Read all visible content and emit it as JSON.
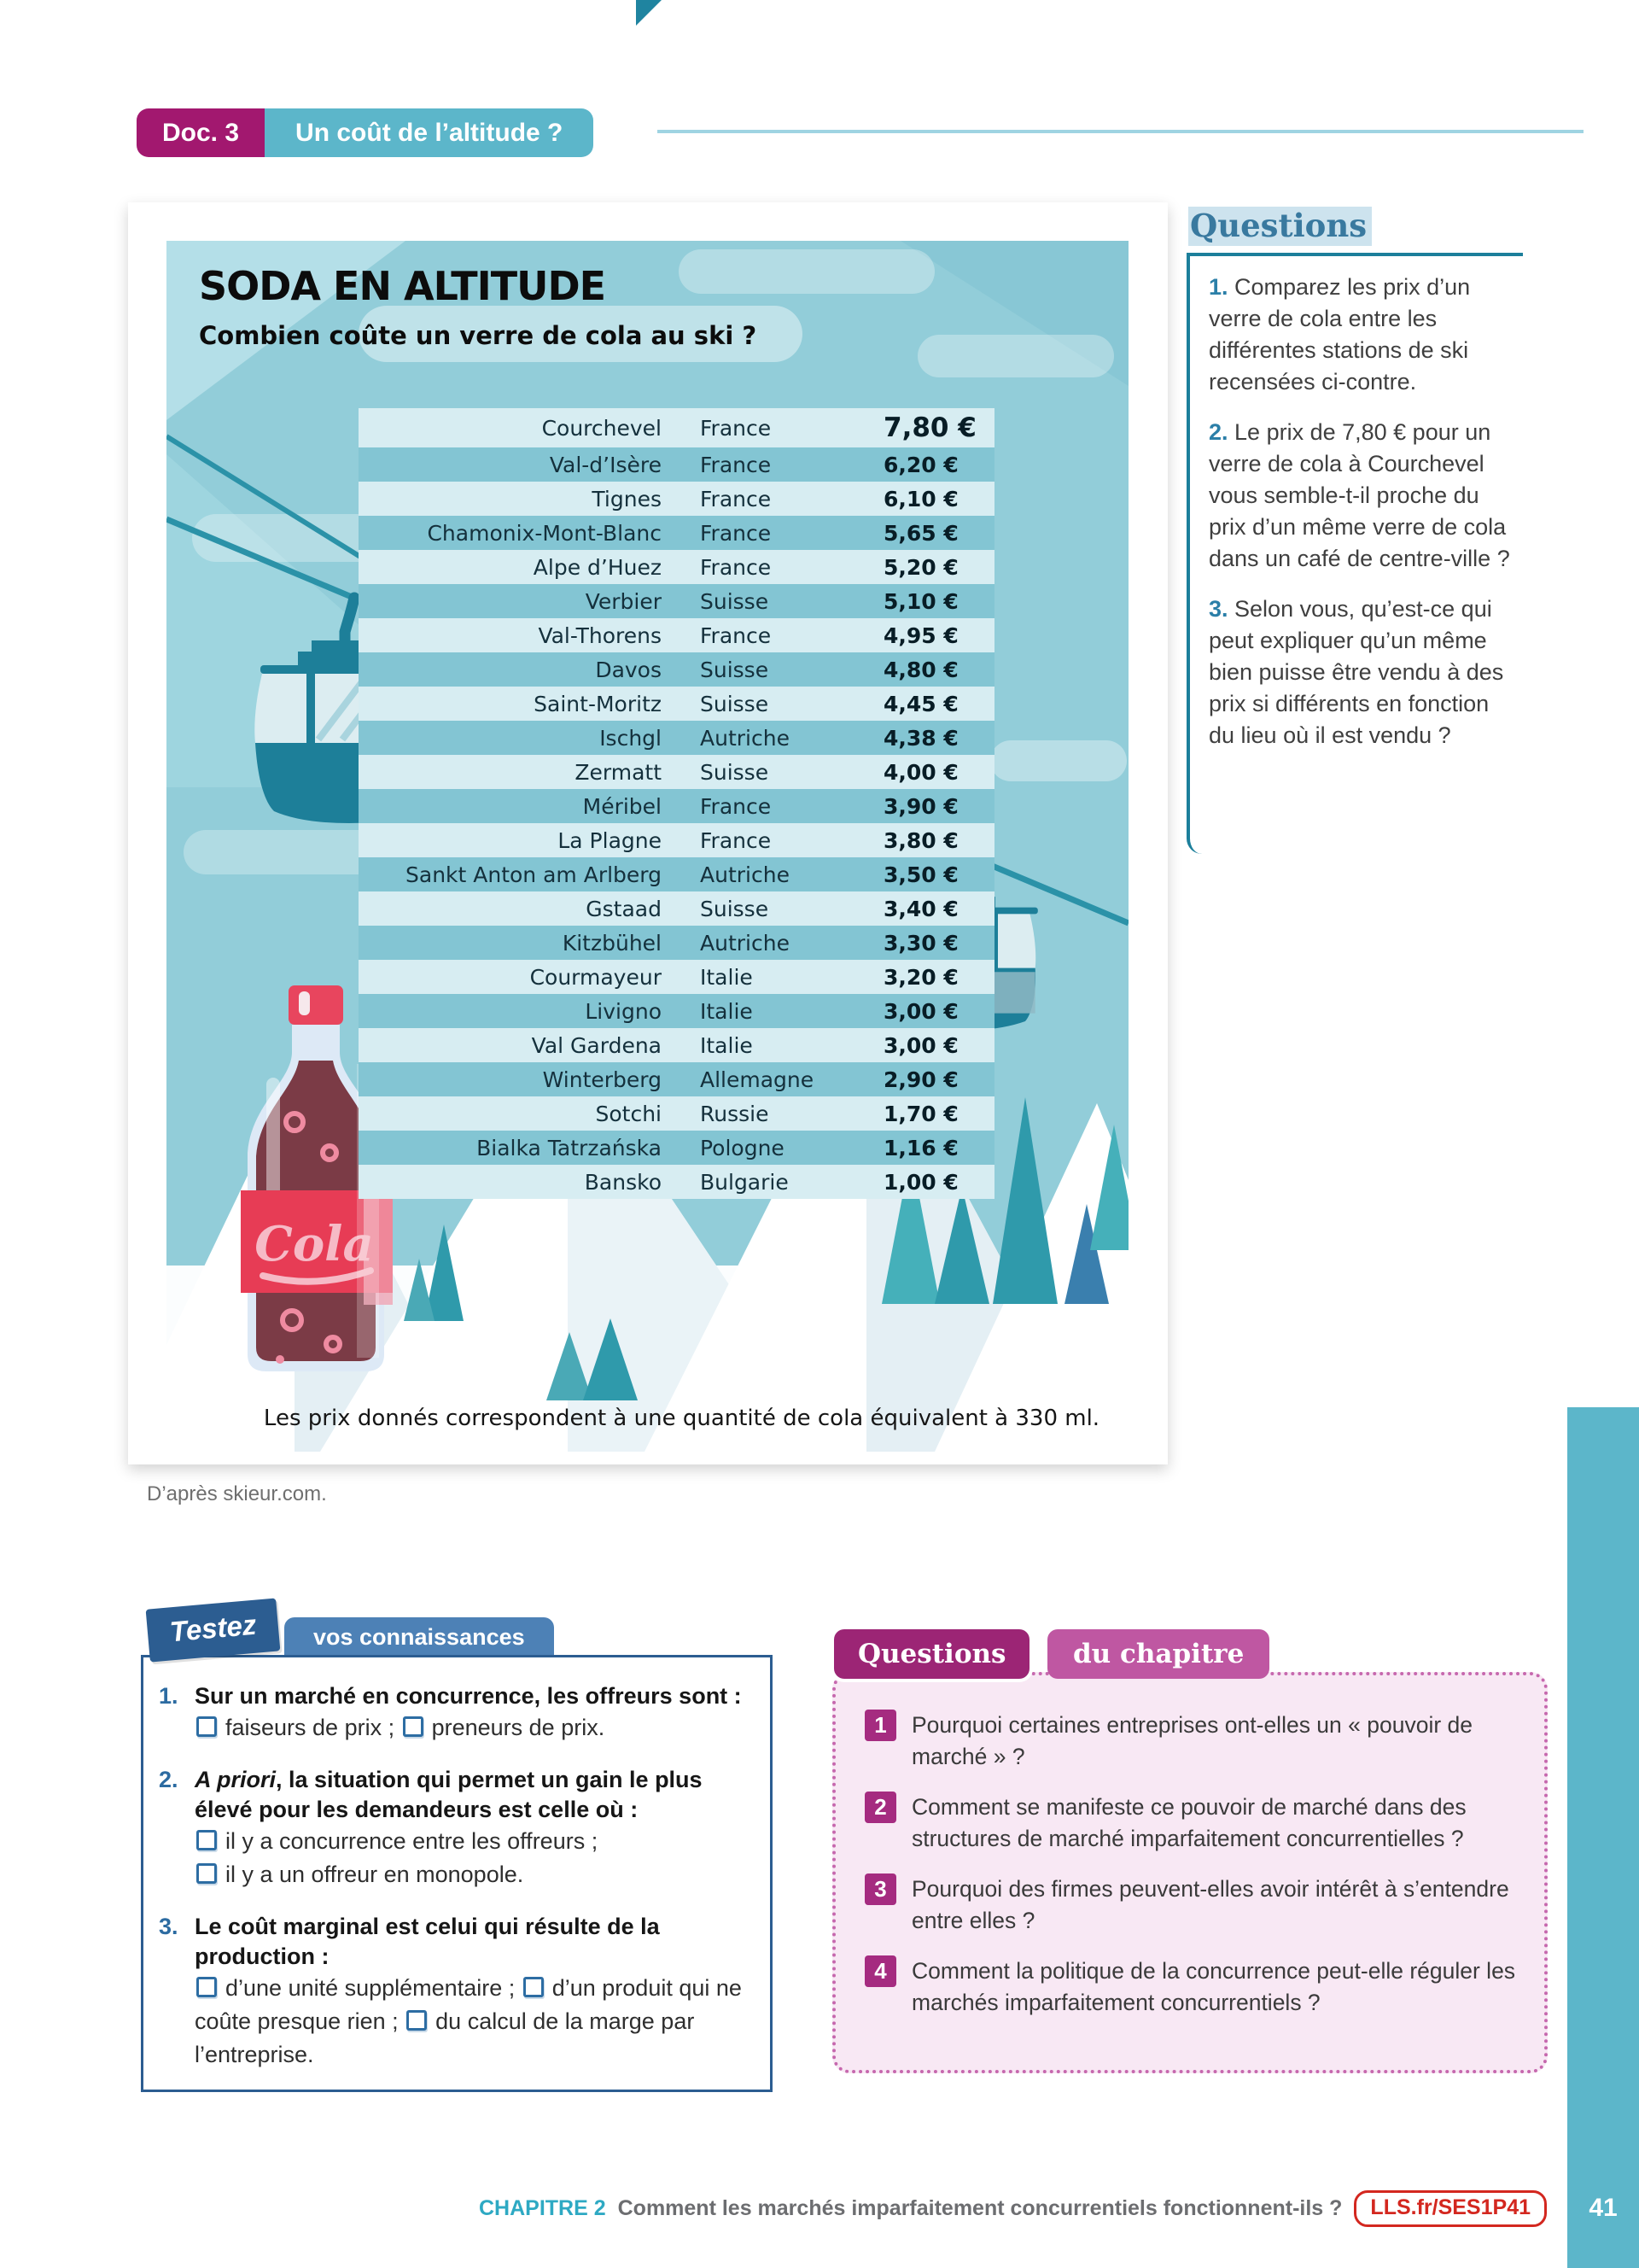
{
  "doc_header": {
    "doc_label": "Doc. 3",
    "title": "Un coût de l’altitude ?"
  },
  "infographic": {
    "title": "SODA EN ALTITUDE",
    "subtitle": "Combien coûte un verre de cola au ski ?",
    "bottle_label": "Cola",
    "caption": "Les prix donnés correspondent à une quantité de cola équivalent à 330 ml.",
    "source": "D’après skieur.com.",
    "resorts": [
      {
        "name": "Courchevel",
        "country": "France",
        "price": "7,80 €"
      },
      {
        "name": "Val-d’Isère",
        "country": "France",
        "price": "6,20 €"
      },
      {
        "name": "Tignes",
        "country": "France",
        "price": "6,10 €"
      },
      {
        "name": "Chamonix-Mont-Blanc",
        "country": "France",
        "price": "5,65 €"
      },
      {
        "name": "Alpe d’Huez",
        "country": "France",
        "price": "5,20 €"
      },
      {
        "name": "Verbier",
        "country": "Suisse",
        "price": "5,10 €"
      },
      {
        "name": "Val-Thorens",
        "country": "France",
        "price": "4,95 €"
      },
      {
        "name": "Davos",
        "country": "Suisse",
        "price": "4,80 €"
      },
      {
        "name": "Saint-Moritz",
        "country": "Suisse",
        "price": "4,45 €"
      },
      {
        "name": "Ischgl",
        "country": "Autriche",
        "price": "4,38 €"
      },
      {
        "name": "Zermatt",
        "country": "Suisse",
        "price": "4,00 €"
      },
      {
        "name": "Méribel",
        "country": "France",
        "price": "3,90 €"
      },
      {
        "name": "La Plagne",
        "country": "France",
        "price": "3,80 €"
      },
      {
        "name": "Sankt Anton am Arlberg",
        "country": "Autriche",
        "price": "3,50 €"
      },
      {
        "name": "Gstaad",
        "country": "Suisse",
        "price": "3,40 €"
      },
      {
        "name": "Kitzbühel",
        "country": "Autriche",
        "price": "3,30 €"
      },
      {
        "name": "Courmayeur",
        "country": "Italie",
        "price": "3,20 €"
      },
      {
        "name": "Livigno",
        "country": "Italie",
        "price": "3,00 €"
      },
      {
        "name": "Val Gardena",
        "country": "Italie",
        "price": "3,00 €"
      },
      {
        "name": "Winterberg",
        "country": "Allemagne",
        "price": "2,90 €"
      },
      {
        "name": "Sotchi",
        "country": "Russie",
        "price": "1,70 €"
      },
      {
        "name": "Bialka Tatrzańska",
        "country": "Pologne",
        "price": "1,16 €"
      },
      {
        "name": "Bansko",
        "country": "Bulgarie",
        "price": "1,00 €"
      }
    ]
  },
  "side_questions": {
    "title": "Questions",
    "items": [
      {
        "num": "1.",
        "text": "Comparez les prix d’un verre de cola entre les différentes stations de ski recensées ci-contre."
      },
      {
        "num": "2.",
        "text": "Le prix de 7,80 € pour un verre de cola à Courchevel vous semble-t-il proche du prix d’un même verre de cola dans un café de centre-ville ?"
      },
      {
        "num": "3.",
        "text": "Selon vous, qu’est-ce qui peut expliquer qu’un même bien puisse être vendu à des prix si différents en fonction du lieu où il est vendu ?"
      }
    ]
  },
  "quiz": {
    "badge": "Testez",
    "tab": "vos connaissances",
    "items": [
      {
        "num": "1.",
        "intro_italic": "",
        "intro": "Sur un marché en concurrence, les offreurs sont :",
        "layout": "inline",
        "options": [
          "faiseurs de prix ;",
          "preneurs de prix."
        ]
      },
      {
        "num": "2.",
        "intro_italic": "A priori",
        "intro": ", la situation qui permet un gain le plus élevé pour les demandeurs est celle où :",
        "layout": "block",
        "options": [
          "il y a concurrence entre les offreurs ;",
          "il y a un offreur en monopole."
        ]
      },
      {
        "num": "3.",
        "intro_italic": "",
        "intro": "Le coût marginal est celui qui résulte de la production :",
        "layout": "inline",
        "options": [
          "d’une unité supplémentaire ;",
          "d’un produit qui ne coûte presque rien ;",
          "du calcul de la marge par l’entreprise."
        ]
      }
    ]
  },
  "chapter_questions": {
    "tab1": "Questions",
    "tab2": "du chapitre",
    "items": [
      {
        "num": "1",
        "text": "Pourquoi certaines entreprises ont-elles un « pouvoir de marché » ?"
      },
      {
        "num": "2",
        "text": "Comment se manifeste ce pouvoir de marché dans des structures de marché imparfaitement concurrentielles ?"
      },
      {
        "num": "3",
        "text": "Pourquoi des firmes peuvent-elles avoir intérêt à s’entendre entre elles ?"
      },
      {
        "num": "4",
        "text": "Comment la politique de la concurrence peut-elle réguler les marchés imparfaitement concurrentiels ?"
      }
    ]
  },
  "footer": {
    "chapter_label": "CHAPITRE 2",
    "chapter_title": "Comment les marchés imparfaitement concurrentiels fonctionnent-ils ?",
    "link": "LLS.fr/SES1P41",
    "page": "41"
  },
  "colors": {
    "magenta": "#a2186f",
    "teal": "#5cb6ca",
    "teal_dark": "#1f84a0",
    "graphic_bg": "#92cdd9",
    "row_light": "#d7edf2",
    "row_dark": "#83c5d3",
    "quiz_blue": "#2c5d91",
    "quiz_tab_blue": "#4d81b6",
    "chapter_magenta": "#9c2575",
    "chapter_pink": "#f8e8f4",
    "link_red": "#d3271f",
    "footer_teal": "#2ea9c3"
  }
}
